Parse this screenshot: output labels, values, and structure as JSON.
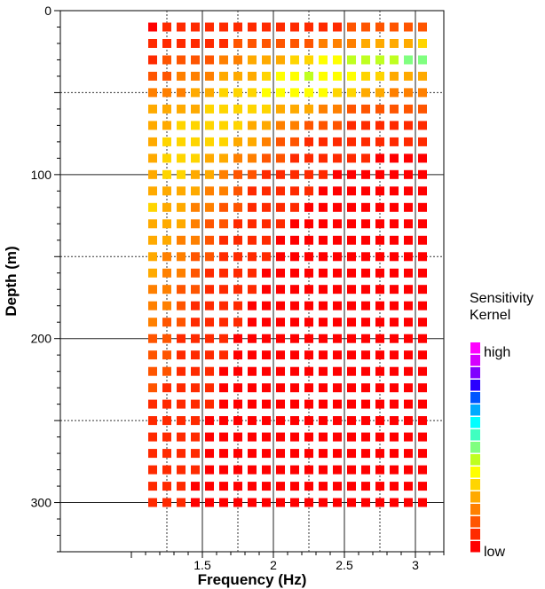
{
  "chart_data": {
    "type": "heatmap",
    "title": "",
    "xlabel": "Frequency (Hz)",
    "ylabel": "Depth (m)",
    "xlim": [
      0.5,
      3.2
    ],
    "ylim": [
      0,
      330
    ],
    "y_inverted": true,
    "x_ticks": [
      "1.5",
      "2",
      "2.5",
      "3"
    ],
    "x_tick_values": [
      1.5,
      2,
      2.5,
      3
    ],
    "y_ticks": [
      "0",
      "100",
      "200",
      "300"
    ],
    "y_tick_values": [
      0,
      100,
      200,
      300
    ],
    "major_grid_x": [
      1.5,
      2,
      2.5,
      3
    ],
    "minor_grid_x": [
      1.25,
      1.75,
      2.25,
      2.75
    ],
    "major_grid_y": [
      100,
      200,
      300
    ],
    "minor_grid_y": [
      50,
      150,
      250
    ],
    "x": [
      1.15,
      1.25,
      1.35,
      1.45,
      1.55,
      1.65,
      1.75,
      1.85,
      1.95,
      2.05,
      2.15,
      2.25,
      2.35,
      2.45,
      2.55,
      2.65,
      2.75,
      2.85,
      2.95,
      3.05
    ],
    "y": [
      10,
      20,
      30,
      40,
      50,
      60,
      70,
      80,
      90,
      100,
      110,
      120,
      130,
      140,
      150,
      160,
      170,
      180,
      190,
      200,
      210,
      220,
      230,
      240,
      250,
      260,
      270,
      280,
      290,
      300
    ],
    "z_scale": "sensitivity level 0 (low) to 10 (high)",
    "z": [
      [
        0.3,
        0.4,
        0.4,
        0.4,
        0.4,
        0.5,
        0.6,
        0.6,
        0.7,
        0.7,
        0.8,
        0.8,
        0.9,
        0.9,
        1.0,
        1.0,
        1.1,
        1.1,
        1.2,
        1.2
      ],
      [
        0.5,
        0.7,
        0.8,
        0.8,
        0.9,
        0.9,
        1.0,
        1.1,
        1.2,
        1.3,
        1.4,
        1.5,
        1.6,
        1.7,
        1.9,
        2.2,
        2.4,
        2.6,
        2.8,
        3.2
      ],
      [
        0.9,
        1.1,
        1.2,
        1.3,
        1.5,
        1.8,
        2.0,
        2.2,
        2.5,
        2.8,
        3.1,
        3.4,
        3.7,
        3.9,
        4.2,
        4.3,
        4.4,
        4.5,
        4.7,
        4.8
      ],
      [
        1.3,
        1.5,
        1.7,
        1.9,
        2.1,
        2.4,
        2.7,
        2.8,
        3.2,
        3.6,
        3.9,
        4.1,
        4.0,
        3.8,
        3.5,
        3.2,
        3.0,
        2.8,
        2.6,
        2.4
      ],
      [
        1.6,
        1.9,
        2.1,
        2.4,
        2.6,
        2.9,
        3.1,
        3.3,
        3.5,
        3.6,
        3.7,
        3.7,
        3.5,
        3.3,
        3.0,
        2.7,
        2.4,
        2.1,
        1.9,
        1.7
      ],
      [
        2.2,
        2.4,
        2.6,
        2.8,
        3.0,
        3.1,
        3.2,
        3.2,
        3.0,
        2.8,
        2.5,
        2.2,
        1.9,
        1.6,
        1.4,
        1.3,
        1.2,
        1.1,
        1.0,
        1.0
      ],
      [
        2.5,
        2.7,
        2.9,
        3.1,
        3.2,
        3.3,
        3.0,
        2.8,
        2.4,
        2.0,
        1.7,
        1.4,
        1.2,
        1.0,
        0.9,
        0.8,
        0.7,
        0.7,
        0.6,
        0.6
      ],
      [
        2.7,
        2.9,
        3.1,
        3.2,
        3.1,
        2.9,
        2.6,
        2.2,
        1.8,
        1.4,
        1.1,
        0.9,
        0.8,
        0.7,
        0.6,
        0.5,
        0.5,
        0.4,
        0.4,
        0.4
      ],
      [
        2.7,
        2.9,
        3.0,
        3.0,
        2.8,
        2.5,
        2.1,
        1.6,
        1.3,
        1.0,
        0.8,
        0.7,
        0.6,
        0.5,
        0.4,
        0.4,
        0.3,
        0.3,
        0.3,
        0.3
      ],
      [
        2.8,
        2.9,
        2.9,
        2.7,
        2.3,
        1.9,
        1.4,
        1.1,
        0.9,
        0.7,
        0.6,
        0.5,
        0.4,
        0.3,
        0.3,
        0.3,
        0.3,
        0.3,
        0.3,
        0.3
      ],
      [
        2.8,
        2.8,
        2.7,
        2.4,
        2.0,
        1.6,
        1.2,
        0.9,
        0.7,
        0.6,
        0.5,
        0.4,
        0.3,
        0.3,
        0.3,
        0.3,
        0.3,
        0.3,
        0.3,
        0.3
      ],
      [
        2.9,
        2.8,
        2.5,
        2.1,
        1.7,
        1.3,
        1.0,
        0.8,
        0.6,
        0.5,
        0.4,
        0.3,
        0.3,
        0.3,
        0.3,
        0.3,
        0.3,
        0.3,
        0.3,
        0.3
      ],
      [
        2.8,
        2.6,
        2.2,
        1.8,
        1.4,
        1.0,
        0.8,
        0.6,
        0.5,
        0.4,
        0.3,
        0.3,
        0.3,
        0.3,
        0.3,
        0.3,
        0.3,
        0.3,
        0.3,
        0.3
      ],
      [
        2.6,
        2.4,
        2.0,
        1.6,
        1.2,
        0.9,
        0.7,
        0.5,
        0.4,
        0.3,
        0.3,
        0.3,
        0.3,
        0.3,
        0.3,
        0.3,
        0.3,
        0.3,
        0.3,
        0.3
      ],
      [
        2.4,
        2.1,
        1.8,
        1.4,
        1.0,
        0.8,
        0.6,
        0.5,
        0.4,
        0.3,
        0.3,
        0.3,
        0.3,
        0.3,
        0.3,
        0.3,
        0.3,
        0.3,
        0.3,
        0.3
      ],
      [
        2.2,
        1.9,
        1.6,
        1.2,
        0.9,
        0.7,
        0.5,
        0.4,
        0.3,
        0.3,
        0.3,
        0.3,
        0.3,
        0.3,
        0.3,
        0.3,
        0.3,
        0.3,
        0.3,
        0.3
      ],
      [
        2.0,
        1.8,
        1.4,
        1.0,
        0.8,
        0.6,
        0.5,
        0.4,
        0.3,
        0.3,
        0.3,
        0.3,
        0.3,
        0.3,
        0.3,
        0.3,
        0.3,
        0.3,
        0.3,
        0.3
      ],
      [
        1.8,
        1.6,
        1.2,
        0.9,
        0.7,
        0.5,
        0.4,
        0.3,
        0.3,
        0.3,
        0.3,
        0.3,
        0.3,
        0.3,
        0.3,
        0.3,
        0.3,
        0.3,
        0.3,
        0.3
      ],
      [
        1.6,
        1.4,
        1.1,
        0.8,
        0.6,
        0.5,
        0.4,
        0.3,
        0.3,
        0.3,
        0.3,
        0.3,
        0.3,
        0.3,
        0.3,
        0.3,
        0.3,
        0.3,
        0.3,
        0.3
      ],
      [
        1.4,
        1.2,
        0.9,
        0.7,
        0.5,
        0.4,
        0.3,
        0.3,
        0.3,
        0.3,
        0.3,
        0.3,
        0.3,
        0.3,
        0.3,
        0.3,
        0.3,
        0.3,
        0.3,
        0.3
      ],
      [
        1.2,
        1.1,
        0.8,
        0.6,
        0.5,
        0.4,
        0.3,
        0.3,
        0.3,
        0.3,
        0.3,
        0.3,
        0.3,
        0.3,
        0.3,
        0.3,
        0.3,
        0.3,
        0.3,
        0.3
      ],
      [
        1.1,
        1.0,
        0.8,
        0.6,
        0.4,
        0.3,
        0.3,
        0.3,
        0.3,
        0.3,
        0.3,
        0.3,
        0.3,
        0.3,
        0.3,
        0.3,
        0.3,
        0.3,
        0.3,
        0.3
      ],
      [
        1.0,
        0.9,
        0.7,
        0.5,
        0.4,
        0.3,
        0.3,
        0.3,
        0.3,
        0.3,
        0.3,
        0.3,
        0.3,
        0.3,
        0.3,
        0.3,
        0.3,
        0.3,
        0.3,
        0.3
      ],
      [
        0.9,
        0.8,
        0.6,
        0.5,
        0.4,
        0.3,
        0.3,
        0.3,
        0.3,
        0.3,
        0.3,
        0.3,
        0.3,
        0.3,
        0.3,
        0.3,
        0.3,
        0.3,
        0.3,
        0.3
      ],
      [
        0.8,
        0.7,
        0.6,
        0.4,
        0.3,
        0.3,
        0.3,
        0.3,
        0.3,
        0.3,
        0.3,
        0.3,
        0.3,
        0.3,
        0.3,
        0.3,
        0.3,
        0.3,
        0.3,
        0.3
      ],
      [
        0.7,
        0.7,
        0.5,
        0.4,
        0.3,
        0.3,
        0.3,
        0.3,
        0.3,
        0.3,
        0.3,
        0.3,
        0.3,
        0.3,
        0.3,
        0.3,
        0.3,
        0.3,
        0.3,
        0.3
      ],
      [
        0.7,
        0.6,
        0.5,
        0.4,
        0.3,
        0.3,
        0.3,
        0.3,
        0.3,
        0.3,
        0.3,
        0.3,
        0.3,
        0.3,
        0.3,
        0.3,
        0.3,
        0.3,
        0.3,
        0.3
      ],
      [
        0.6,
        0.6,
        0.5,
        0.4,
        0.3,
        0.3,
        0.3,
        0.3,
        0.3,
        0.3,
        0.3,
        0.3,
        0.3,
        0.3,
        0.3,
        0.3,
        0.3,
        0.3,
        0.3,
        0.3
      ],
      [
        0.6,
        0.5,
        0.4,
        0.3,
        0.3,
        0.3,
        0.3,
        0.3,
        0.3,
        0.3,
        0.3,
        0.3,
        0.3,
        0.3,
        0.3,
        0.3,
        0.3,
        0.3,
        0.3,
        0.3
      ],
      [
        0.5,
        0.5,
        0.4,
        0.3,
        0.3,
        0.3,
        0.3,
        0.3,
        0.3,
        0.3,
        0.3,
        0.3,
        0.3,
        0.3,
        0.3,
        0.3,
        0.3,
        0.3,
        0.3,
        0.3
      ]
    ],
    "colorbar": {
      "title_line1": "Sensitivity",
      "title_line2": "Kernel",
      "high_label": "high",
      "low_label": "low",
      "colors": [
        "#ff0000",
        "#ff2a00",
        "#ff5500",
        "#ff8000",
        "#ffaa00",
        "#ffd500",
        "#ffff00",
        "#bfff20",
        "#80ff80",
        "#40ffc0",
        "#00ffff",
        "#00aaff",
        "#0055ff",
        "#2a00ff",
        "#8000ff",
        "#d500ff",
        "#ff00ff"
      ]
    }
  }
}
